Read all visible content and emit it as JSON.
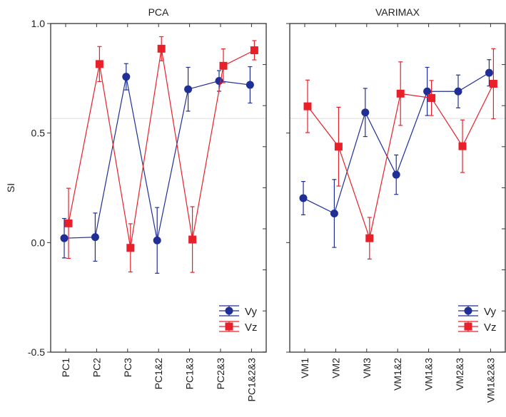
{
  "chart_data": [
    {
      "type": "line",
      "title": "PCA",
      "xlabel": "",
      "ylabel": "SI",
      "ylim": [
        -0.5,
        1.0
      ],
      "yticks": [
        "-0.5",
        "0.0",
        "0.5",
        "1.0"
      ],
      "categories": [
        "PC1",
        "PC2",
        "PC3",
        "PC1&2",
        "PC1&3",
        "PC2&3",
        "PC1&2&3"
      ],
      "reference_line": 0.567,
      "legend_position": "bottom-right",
      "series": [
        {
          "name": "Vy",
          "color": "#1f2f96",
          "marker": "circle",
          "values": [
            0.02,
            0.025,
            0.757,
            0.01,
            0.7,
            0.738,
            0.72
          ],
          "errors": [
            0.09,
            0.11,
            0.06,
            0.15,
            0.1,
            0.047,
            0.083
          ]
        },
        {
          "name": "Vz",
          "color": "#e8202a",
          "marker": "square",
          "values": [
            0.088,
            0.815,
            -0.024,
            0.885,
            0.014,
            0.807,
            0.878
          ],
          "errors": [
            0.16,
            0.08,
            0.11,
            0.055,
            0.15,
            0.077,
            0.044
          ]
        }
      ]
    },
    {
      "type": "line",
      "title": "VARIMAX",
      "xlabel": "",
      "ylabel": "",
      "ylim": [
        -0.5,
        1.0
      ],
      "categories": [
        "VM1",
        "VM2",
        "VM3",
        "VM1&2",
        "VM1&3",
        "VM2&3",
        "VM1&2&3"
      ],
      "reference_line": 0.567,
      "legend_position": "bottom-right",
      "series": [
        {
          "name": "Vy",
          "color": "#1f2f96",
          "marker": "circle",
          "values": [
            0.203,
            0.133,
            0.594,
            0.31,
            0.69,
            0.69,
            0.775
          ],
          "errors": [
            0.076,
            0.155,
            0.11,
            0.09,
            0.11,
            0.075,
            0.06
          ]
        },
        {
          "name": "Vz",
          "color": "#e8202a",
          "marker": "square",
          "values": [
            0.622,
            0.438,
            0.02,
            0.68,
            0.66,
            0.44,
            0.725
          ],
          "errors": [
            0.12,
            0.18,
            0.095,
            0.145,
            0.08,
            0.12,
            0.16
          ]
        }
      ]
    }
  ]
}
